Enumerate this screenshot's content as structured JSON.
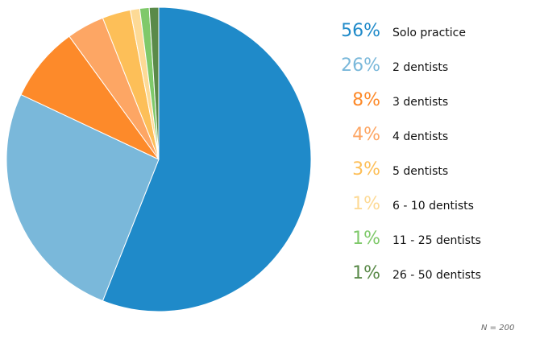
{
  "chart_data": {
    "type": "pie",
    "slices": [
      {
        "label": "Solo practice",
        "value": 56,
        "value_label": "56%",
        "color": "#1f8ac9"
      },
      {
        "label": "2 dentists",
        "value": 26,
        "value_label": "26%",
        "color": "#7ab8da"
      },
      {
        "label": "3 dentists",
        "value": 8,
        "value_label": "8%",
        "color": "#fd8a2a"
      },
      {
        "label": "4 dentists",
        "value": 4,
        "value_label": "4%",
        "color": "#fda664"
      },
      {
        "label": "5 dentists",
        "value": 3,
        "value_label": "3%",
        "color": "#fdbf58"
      },
      {
        "label": "6 - 10 dentists",
        "value": 1,
        "value_label": "1%",
        "color": "#fdda96"
      },
      {
        "label": "11 - 25 dentists",
        "value": 1,
        "value_label": "1%",
        "color": "#7fc96a"
      },
      {
        "label": "26 - 50 dentists",
        "value": 1,
        "value_label": "1%",
        "color": "#5a8a49"
      }
    ],
    "legend_position": "right",
    "note": "N = 200"
  }
}
